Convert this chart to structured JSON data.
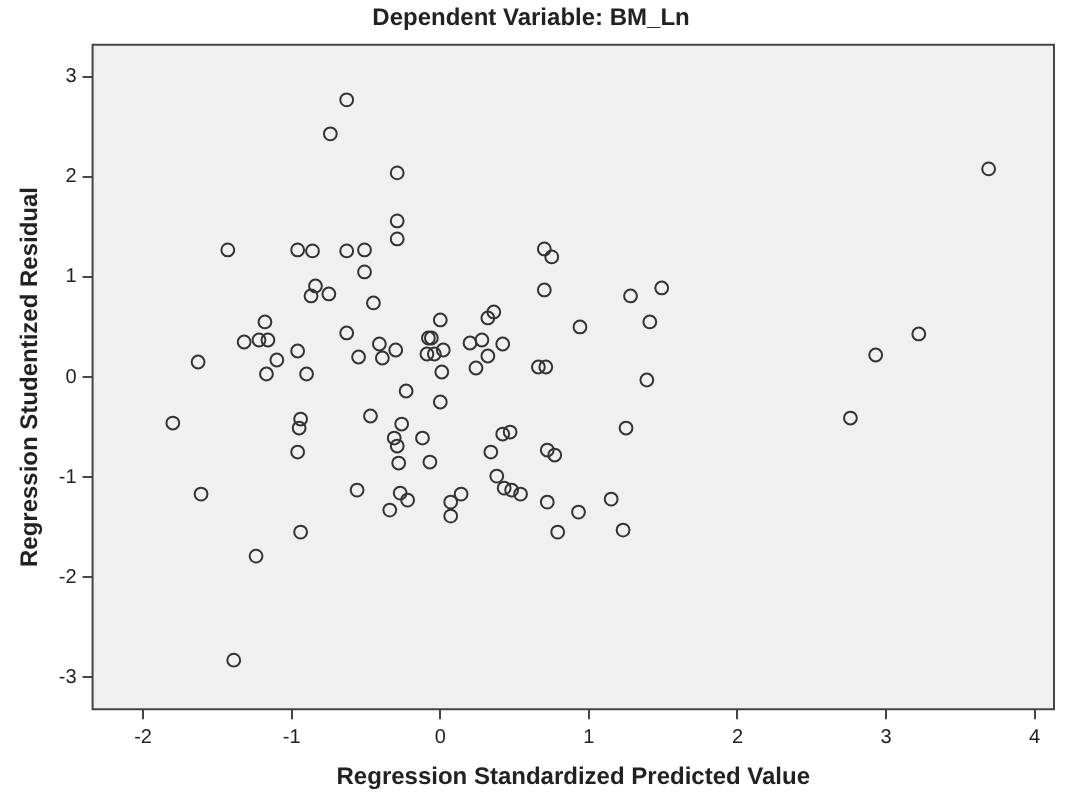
{
  "chart_data": {
    "type": "scatter",
    "title": "Dependent Variable: BM_Ln",
    "xlabel": "Regression Standardized Predicted Value",
    "ylabel": "Regression Studentized Residual",
    "xlim": [
      -2.34,
      4.13
    ],
    "ylim": [
      -3.32,
      3.32
    ],
    "xticks": [
      -2,
      -1,
      0,
      1,
      2,
      3,
      4
    ],
    "yticks": [
      -3,
      -2,
      -1,
      0,
      1,
      2,
      3
    ],
    "legend": false,
    "marker": "circle",
    "series": [
      {
        "color": "#333333",
        "x": [
          -1.43,
          -1.63,
          -0.63,
          -0.74,
          -0.29,
          -0.29,
          -0.29,
          -0.96,
          -0.86,
          -0.63,
          -0.51,
          -0.51,
          -0.84,
          -0.87,
          -0.75,
          -0.45,
          -1.18,
          -1.32,
          -1.22,
          -1.16,
          -0.96,
          -1.1,
          -0.63,
          -0.55,
          -0.41,
          -0.39,
          -0.3,
          0.0,
          -0.08,
          -0.06,
          -0.09,
          -0.04,
          0.02,
          -1.17,
          -0.9,
          0.01,
          -1.8,
          -1.61,
          -1.24,
          -1.39,
          -0.94,
          -0.95,
          -0.96,
          -0.94,
          -0.23,
          -0.47,
          -0.26,
          -0.31,
          -0.29,
          -0.12,
          -0.28,
          -0.07,
          -0.56,
          -0.27,
          -0.22,
          -0.34,
          0.0,
          0.7,
          0.75,
          0.7,
          1.28,
          1.49,
          1.41,
          0.94,
          0.32,
          0.36,
          0.2,
          0.28,
          0.42,
          0.32,
          0.24,
          0.66,
          0.71,
          1.39,
          1.25,
          0.34,
          0.42,
          0.47,
          0.72,
          0.77,
          0.38,
          0.43,
          0.48,
          0.54,
          0.14,
          0.07,
          0.07,
          0.72,
          0.93,
          1.15,
          0.79,
          1.23,
          3.22,
          2.93,
          2.76,
          3.69
        ],
        "values": [
          1.27,
          0.15,
          2.77,
          2.43,
          2.04,
          1.56,
          1.38,
          1.27,
          1.26,
          1.26,
          1.27,
          1.05,
          0.91,
          0.81,
          0.83,
          0.74,
          0.55,
          0.35,
          0.37,
          0.37,
          0.26,
          0.17,
          0.44,
          0.2,
          0.33,
          0.19,
          0.27,
          0.57,
          0.39,
          0.39,
          0.23,
          0.23,
          0.27,
          0.03,
          0.03,
          0.05,
          -0.46,
          -1.17,
          -1.79,
          -2.83,
          -0.42,
          -0.51,
          -0.75,
          -1.55,
          -0.14,
          -0.39,
          -0.47,
          -0.61,
          -0.69,
          -0.61,
          -0.86,
          -0.85,
          -1.13,
          -1.16,
          -1.23,
          -1.33,
          -0.25,
          1.28,
          1.2,
          0.87,
          0.81,
          0.89,
          0.55,
          0.5,
          0.59,
          0.65,
          0.34,
          0.37,
          0.33,
          0.21,
          0.09,
          0.1,
          0.1,
          -0.03,
          -0.51,
          -0.75,
          -0.57,
          -0.55,
          -0.73,
          -0.78,
          -0.99,
          -1.11,
          -1.13,
          -1.17,
          -1.17,
          -1.25,
          -1.39,
          -1.25,
          -1.35,
          -1.22,
          -1.55,
          -1.53,
          0.43,
          0.22,
          -0.41,
          2.08
        ]
      }
    ]
  }
}
